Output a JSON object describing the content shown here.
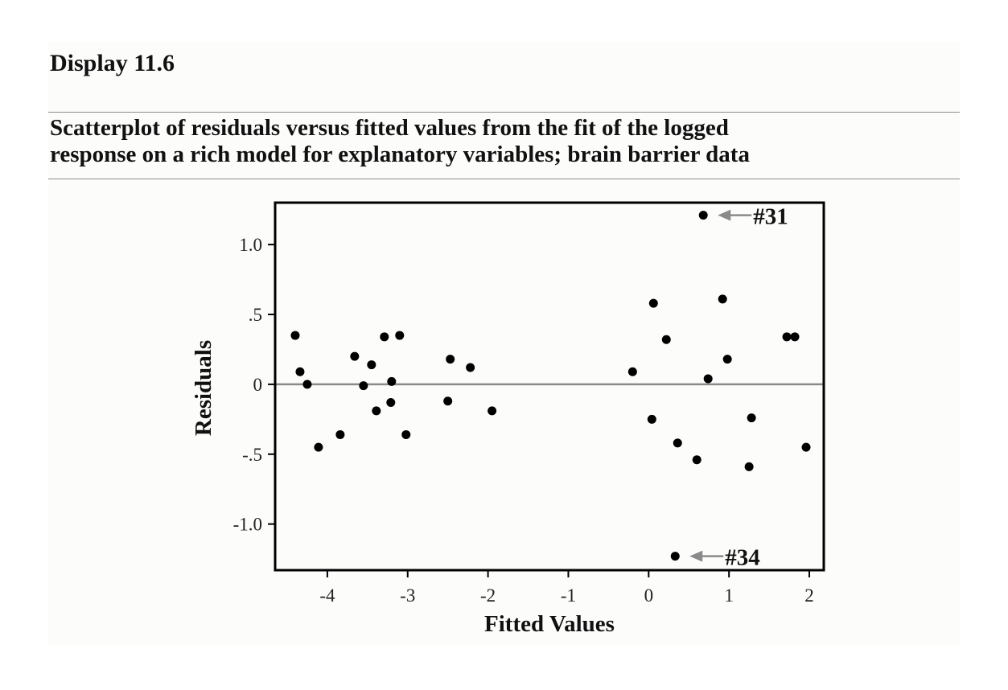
{
  "display": {
    "title": "Display 11.6"
  },
  "caption": {
    "line1": "Scatterplot of residuals versus fitted values from the fit of the logged",
    "line2": "response on a rich model for explanatory variables; brain barrier data"
  },
  "colors": {
    "points": "#000000",
    "reference_line": "#8a8a8a",
    "arrows": "#8a8a8a"
  },
  "chart_data": {
    "type": "scatter",
    "xlabel": "Fitted Values",
    "ylabel": "Residuals",
    "xlim": [
      -4.65,
      2.18
    ],
    "ylim": [
      -1.33,
      1.3
    ],
    "xticks": [
      -4,
      -3,
      -2,
      -1,
      0,
      1,
      2
    ],
    "xtick_labels": [
      "-4",
      "-3",
      "-2",
      "-1",
      "0",
      "1",
      "2"
    ],
    "yticks": [
      1.0,
      0.5,
      0,
      -0.5,
      -1.0
    ],
    "ytick_labels": [
      "1.0",
      ".5",
      "0",
      "-.5",
      "-1.0"
    ],
    "reference_line_y": 0,
    "grid": false,
    "points": [
      {
        "x": -4.4,
        "y": 0.35
      },
      {
        "x": -4.34,
        "y": 0.09
      },
      {
        "x": -4.25,
        "y": 0.0
      },
      {
        "x": -4.11,
        "y": -0.45
      },
      {
        "x": -3.84,
        "y": -0.36
      },
      {
        "x": -3.66,
        "y": 0.2
      },
      {
        "x": -3.55,
        "y": -0.01
      },
      {
        "x": -3.45,
        "y": 0.14
      },
      {
        "x": -3.39,
        "y": -0.19
      },
      {
        "x": -3.29,
        "y": 0.34
      },
      {
        "x": -3.2,
        "y": 0.02
      },
      {
        "x": -3.21,
        "y": -0.13
      },
      {
        "x": -3.1,
        "y": 0.35
      },
      {
        "x": -3.02,
        "y": -0.36
      },
      {
        "x": -2.5,
        "y": -0.12
      },
      {
        "x": -2.47,
        "y": 0.18
      },
      {
        "x": -2.22,
        "y": 0.12
      },
      {
        "x": -1.95,
        "y": -0.19
      },
      {
        "x": -0.2,
        "y": 0.09
      },
      {
        "x": 0.04,
        "y": -0.25
      },
      {
        "x": 0.06,
        "y": 0.58
      },
      {
        "x": 0.22,
        "y": 0.32
      },
      {
        "x": 0.36,
        "y": -0.42
      },
      {
        "x": 0.6,
        "y": -0.54
      },
      {
        "x": 0.74,
        "y": 0.04
      },
      {
        "x": 0.92,
        "y": 0.61
      },
      {
        "x": 0.98,
        "y": 0.18
      },
      {
        "x": 1.25,
        "y": -0.59
      },
      {
        "x": 1.28,
        "y": -0.24
      },
      {
        "x": 1.72,
        "y": 0.34
      },
      {
        "x": 1.82,
        "y": 0.34
      },
      {
        "x": 1.96,
        "y": -0.45
      },
      {
        "x": 0.68,
        "y": 1.21
      },
      {
        "x": 0.33,
        "y": -1.23
      }
    ],
    "annotations": [
      {
        "label": "#31",
        "x": 0.68,
        "y": 1.21
      },
      {
        "label": "#34",
        "x": 0.33,
        "y": -1.23
      }
    ]
  }
}
